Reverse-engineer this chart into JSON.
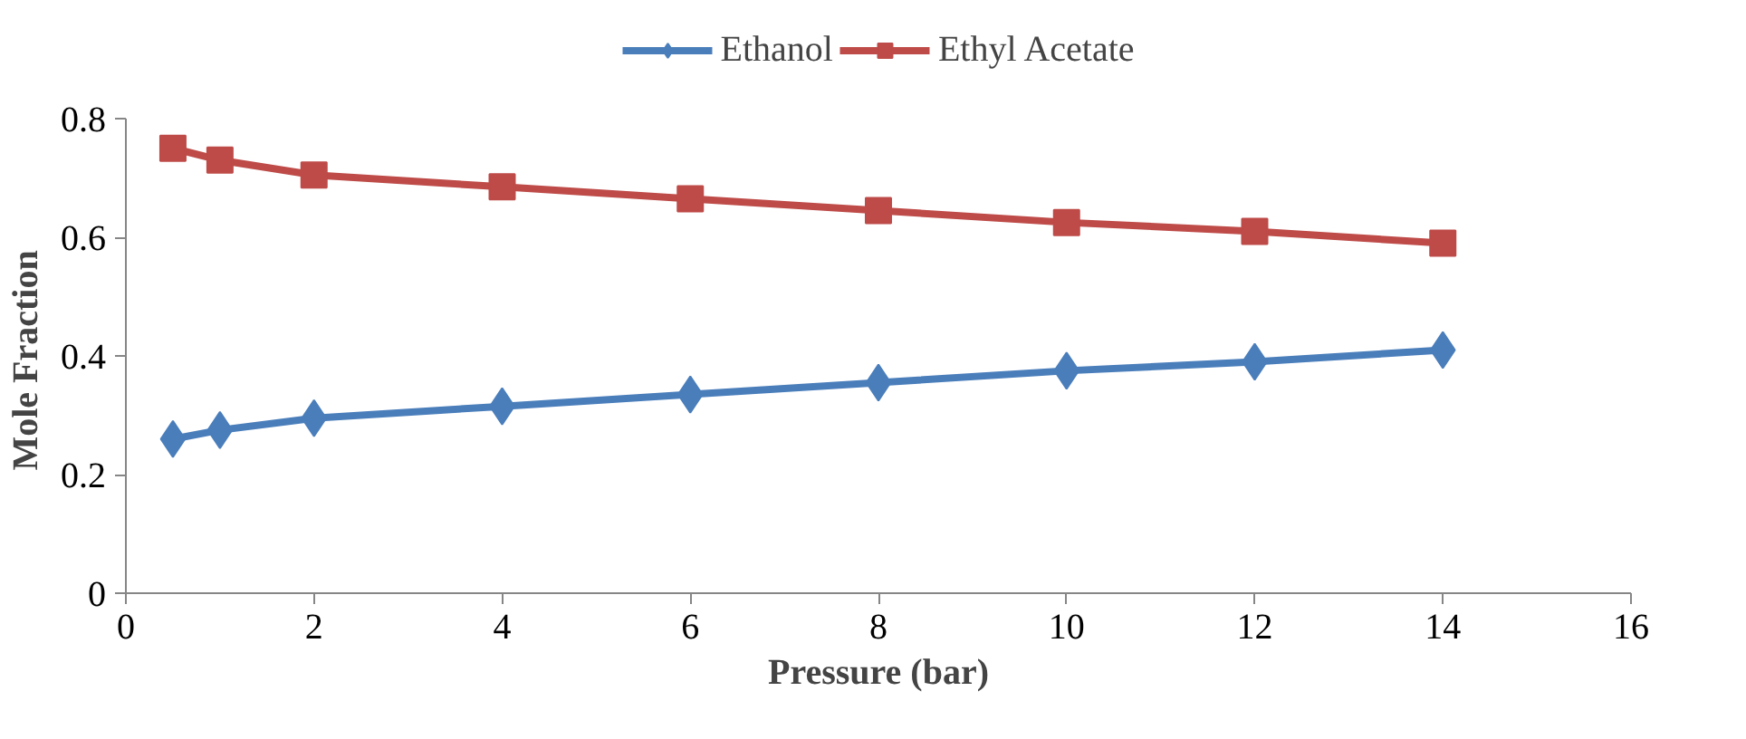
{
  "chart_data": {
    "type": "line",
    "xlabel": "Pressure (bar)",
    "ylabel": "Mole  Fraction",
    "x": [
      0.5,
      1,
      2,
      4,
      6,
      8,
      10,
      12,
      14
    ],
    "series": [
      {
        "name": "Ethanol",
        "color": "#4a7ebb",
        "marker": "diamond",
        "values": [
          0.26,
          0.275,
          0.295,
          0.315,
          0.335,
          0.355,
          0.375,
          0.39,
          0.41
        ]
      },
      {
        "name": "Ethyl Acetate",
        "color": "#be4b48",
        "marker": "square",
        "values": [
          0.75,
          0.73,
          0.705,
          0.685,
          0.665,
          0.645,
          0.625,
          0.61,
          0.59
        ]
      }
    ],
    "xlim": [
      0,
      16
    ],
    "ylim": [
      0,
      0.8
    ],
    "xticks": [
      0,
      2,
      4,
      6,
      8,
      10,
      12,
      14,
      16
    ],
    "yticks": [
      0,
      0.2,
      0.4,
      0.6,
      0.8
    ],
    "grid": false,
    "legend": "top"
  }
}
